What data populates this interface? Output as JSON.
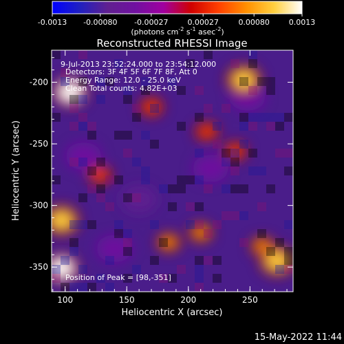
{
  "colorbar": {
    "tick_labels": [
      "-0.0013",
      "-0.00080",
      "-0.00027",
      "0.00027",
      "0.00080",
      "0.0013"
    ],
    "range": [
      -0.0013,
      0.0013
    ],
    "units_prefix": "(photons cm",
    "units_exp1": "-2",
    "units_mid": " s",
    "units_exp2": "-1",
    "units_mid2": " asec",
    "units_exp3": "-2",
    "units_suffix": ")",
    "stops": [
      "#0000ff",
      "#2020c0",
      "#602090",
      "#7010a0",
      "#a000a0",
      "#d00000",
      "#ff4000",
      "#ff9000",
      "#ffd040",
      "#ffffff"
    ]
  },
  "chart_data": {
    "type": "heatmap",
    "title": "Reconstructed RHESSI Image",
    "xlabel": "Heliocentric X (arcsec)",
    "ylabel": "Heliocentric Y (arcsec)",
    "xlim": [
      89,
      285
    ],
    "ylim": [
      -370,
      -174
    ],
    "xticks": [
      100,
      150,
      200,
      250
    ],
    "yticks": [
      -200,
      -250,
      -300,
      -350
    ],
    "peak": {
      "x": 98,
      "y": -351
    },
    "hot_spots": [
      {
        "x": 104,
        "y": -208,
        "value": 0.0013
      },
      {
        "x": 97,
        "y": -351,
        "value": 0.0013
      },
      {
        "x": 97,
        "y": -312,
        "value": 0.0009
      },
      {
        "x": 245,
        "y": -198,
        "value": 0.001
      },
      {
        "x": 272,
        "y": -345,
        "value": 0.001
      },
      {
        "x": 260,
        "y": -333,
        "value": 0.0008
      },
      {
        "x": 184,
        "y": -330,
        "value": 0.0007
      },
      {
        "x": 215,
        "y": -240,
        "value": 0.0005
      },
      {
        "x": 210,
        "y": -322,
        "value": 0.0006
      },
      {
        "x": 170,
        "y": -220,
        "value": 0.0004
      },
      {
        "x": 238,
        "y": -256,
        "value": 0.0004
      },
      {
        "x": 128,
        "y": -275,
        "value": 0.0003
      }
    ],
    "cold_spots": [
      {
        "x": 160,
        "y": -295,
        "value": -0.0006
      },
      {
        "x": 140,
        "y": -335,
        "value": -0.0005
      },
      {
        "x": 115,
        "y": -260,
        "value": -0.0005
      },
      {
        "x": 248,
        "y": -212,
        "value": -0.0005
      },
      {
        "x": 218,
        "y": -270,
        "value": -0.0004
      }
    ]
  },
  "annotations": {
    "line1": "9-Jul-2013 23:52:24.000 to 23:54:12.000",
    "line2": "Detectors: 3F 4F 5F 6F 7F 8F, Att 0",
    "line3": "Energy Range: 12.0 - 25.0 keV",
    "line4": "Clean    Total counts: 4.82E+03",
    "peak_label": "Position of Peak = [98,-351]"
  },
  "footer_date": "15-May-2022 11:44"
}
